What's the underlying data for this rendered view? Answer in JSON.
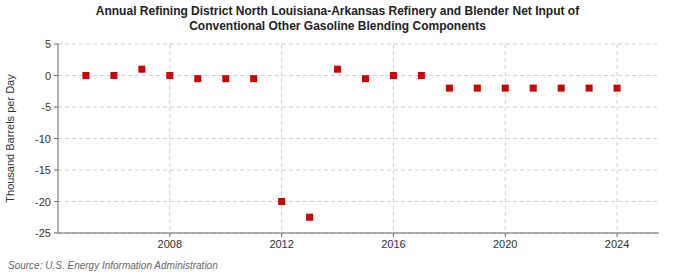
{
  "chart_data": {
    "type": "scatter",
    "title": "Annual Refining District North Louisiana-Arkansas Refinery and Blender Net Input of\nConventional Other Gasoline Blending Components",
    "ylabel": "Thousand Barrels per Day",
    "source": "Source: U.S. Energy Information Administration",
    "x": [
      2005,
      2006,
      2007,
      2008,
      2009,
      2010,
      2011,
      2012,
      2013,
      2014,
      2015,
      2016,
      2017,
      2018,
      2019,
      2020,
      2021,
      2022,
      2023,
      2024
    ],
    "values": [
      0.0,
      0.0,
      1.0,
      0.0,
      -0.5,
      -0.5,
      -0.5,
      -20.0,
      -22.5,
      1.0,
      -0.5,
      0.0,
      0.0,
      -2.0,
      -2.0,
      -2.0,
      -2.0,
      -2.0,
      -2.0,
      -2.0
    ],
    "color": "#CC0000",
    "marker": "square",
    "xlim": [
      2004,
      2025.5
    ],
    "xticks": [
      2008,
      2012,
      2016,
      2020,
      2024
    ],
    "ylim": [
      -25,
      5
    ],
    "yticks": [
      5,
      0,
      -5,
      -10,
      -15,
      -20,
      -25
    ],
    "grid": true
  }
}
